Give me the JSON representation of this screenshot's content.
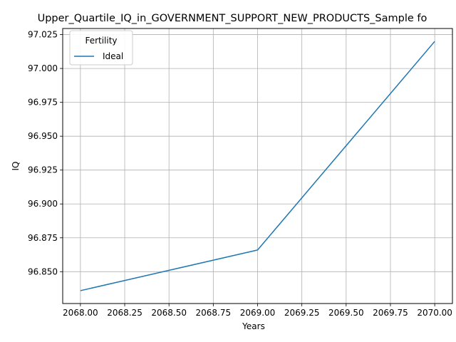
{
  "chart_data": {
    "type": "line",
    "title": "Upper_Quartile_IQ_in_GOVERNMENT_SUPPORT_NEW_PRODUCTS_Sample fo",
    "xlabel": "Years",
    "ylabel": "IQ",
    "xlim": [
      2067.9,
      2070.1
    ],
    "ylim": [
      96.8265,
      97.0295
    ],
    "x_ticks": [
      2068.0,
      2068.25,
      2068.5,
      2068.75,
      2069.0,
      2069.25,
      2069.5,
      2069.75,
      2070.0
    ],
    "x_tick_labels": [
      "2068.00",
      "2068.25",
      "2068.50",
      "2068.75",
      "2069.00",
      "2069.25",
      "2069.50",
      "2069.75",
      "2070.00"
    ],
    "y_ticks": [
      96.85,
      96.875,
      96.9,
      96.925,
      96.95,
      96.975,
      97.0,
      97.025
    ],
    "y_tick_labels": [
      "96.850",
      "96.875",
      "96.900",
      "96.925",
      "96.950",
      "96.975",
      "97.000",
      "97.025"
    ],
    "grid": true,
    "legend": {
      "title": "Fertility",
      "placement": "top-left"
    },
    "series": [
      {
        "name": "Ideal",
        "color": "#1f77b4",
        "x": [
          2068,
          2069,
          2070
        ],
        "y": [
          96.836,
          96.866,
          97.02
        ]
      }
    ]
  }
}
